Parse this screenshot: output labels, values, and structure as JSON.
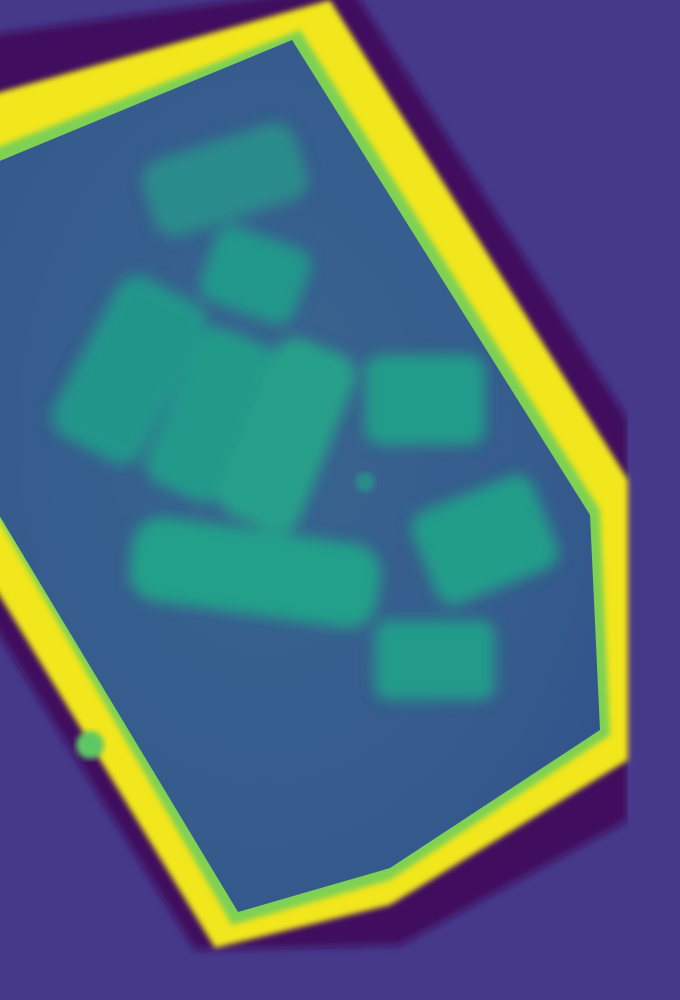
{
  "image": {
    "kind": "false-color depth / intensity map (viridis colormap)",
    "colormap": "viridis",
    "colors": {
      "background": "#46398a",
      "shadow": "#3f0f5f",
      "frame": "#f2e61c",
      "frame_edge": "#7fd152",
      "tray_fill": "#376092",
      "tray_fill_dark": "#33558d",
      "object_fill": "#219b8a",
      "object_fill_light": "#25a08a"
    },
    "objects": [
      {
        "name": "object-top-small"
      },
      {
        "name": "object-upper-middle"
      },
      {
        "name": "object-left-long"
      },
      {
        "name": "object-center-tall"
      },
      {
        "name": "object-center-right-tall"
      },
      {
        "name": "object-right-upper"
      },
      {
        "name": "object-right-lower"
      },
      {
        "name": "object-long-horizontal"
      },
      {
        "name": "object-bottom-square"
      }
    ]
  }
}
